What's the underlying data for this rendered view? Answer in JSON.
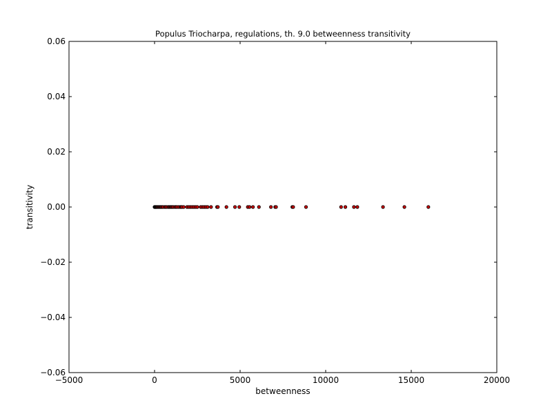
{
  "chart_data": {
    "type": "scatter",
    "title": "Populus Triocharpa, regulations, th. 9.0 betweenness transitivity",
    "xlabel": "betweenness",
    "ylabel": "transitivity",
    "xlim": [
      -5000,
      20000
    ],
    "ylim": [
      -0.06,
      0.06
    ],
    "xticks": [
      -5000,
      0,
      5000,
      10000,
      15000,
      20000
    ],
    "xtick_labels": [
      "−5000",
      "0",
      "5000",
      "10000",
      "15000",
      "20000"
    ],
    "yticks": [
      -0.06,
      -0.04,
      -0.02,
      0.0,
      0.02,
      0.04,
      0.06
    ],
    "ytick_labels": [
      "−0.06",
      "−0.04",
      "−0.02",
      "0.00",
      "0.02",
      "0.04",
      "0.06"
    ],
    "grid": false,
    "marker_color": "#cc0000",
    "marker_edge_color": "#000000",
    "series": [
      {
        "x": [
          0,
          20,
          40,
          60,
          80,
          100,
          130,
          160,
          200,
          240,
          280,
          320,
          360,
          400,
          450,
          500,
          600,
          650,
          700,
          800,
          850,
          900,
          950,
          1000,
          1050,
          1100,
          1200,
          1250,
          1300,
          1400,
          1500,
          1550,
          1600,
          1700,
          1900,
          2000,
          2100,
          2200,
          2300,
          2400,
          2500,
          2700,
          2800,
          2900,
          3000,
          3100,
          3300,
          3650,
          3700,
          4200,
          4700,
          4950,
          5450,
          5550,
          5750,
          6100,
          6800,
          7050,
          7100,
          8050,
          8100,
          8850,
          10900,
          11150,
          11650,
          11850,
          13350,
          14600,
          16000
        ],
        "y": [
          0,
          0,
          0,
          0,
          0,
          0,
          0,
          0,
          0,
          0,
          0,
          0,
          0,
          0,
          0,
          0,
          0,
          0,
          0,
          0,
          0,
          0,
          0,
          0,
          0,
          0,
          0,
          0,
          0,
          0,
          0,
          0,
          0,
          0,
          0,
          0,
          0,
          0,
          0,
          0,
          0,
          0,
          0,
          0,
          0,
          0,
          0,
          0,
          0,
          0,
          0,
          0,
          0,
          0,
          0,
          0,
          0,
          0,
          0,
          0,
          0,
          0,
          0,
          0,
          0,
          0,
          0,
          0,
          0
        ]
      }
    ]
  }
}
